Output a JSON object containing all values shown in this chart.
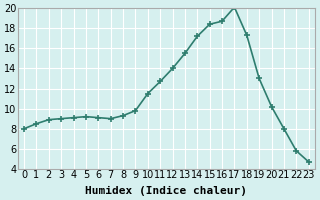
{
  "x": [
    0,
    1,
    2,
    3,
    4,
    5,
    6,
    7,
    8,
    9,
    10,
    11,
    12,
    13,
    14,
    15,
    16,
    17,
    18,
    19,
    20,
    21,
    22,
    23
  ],
  "y": [
    8.0,
    8.5,
    8.9,
    9.0,
    9.1,
    9.2,
    9.1,
    9.0,
    9.3,
    9.8,
    11.5,
    12.7,
    14.0,
    15.5,
    17.2,
    18.4,
    18.7,
    20.1,
    17.3,
    13.0,
    10.2,
    8.0,
    5.8,
    4.7
  ],
  "line_color": "#2e7d6e",
  "marker": "+",
  "marker_size": 5,
  "marker_edge_width": 1.2,
  "background_color": "#d6f0ef",
  "grid_color": "#ffffff",
  "xlabel": "Humidex (Indice chaleur)",
  "ylim": [
    4,
    20
  ],
  "yticks": [
    4,
    6,
    8,
    10,
    12,
    14,
    16,
    18,
    20
  ],
  "xlim_min": -0.5,
  "xlim_max": 23.5,
  "xticks": [
    0,
    1,
    2,
    3,
    4,
    5,
    6,
    7,
    8,
    9,
    10,
    11,
    12,
    13,
    14,
    15,
    16,
    17,
    18,
    19,
    20,
    21,
    22,
    23
  ],
  "font_size": 7,
  "line_width": 1.2
}
